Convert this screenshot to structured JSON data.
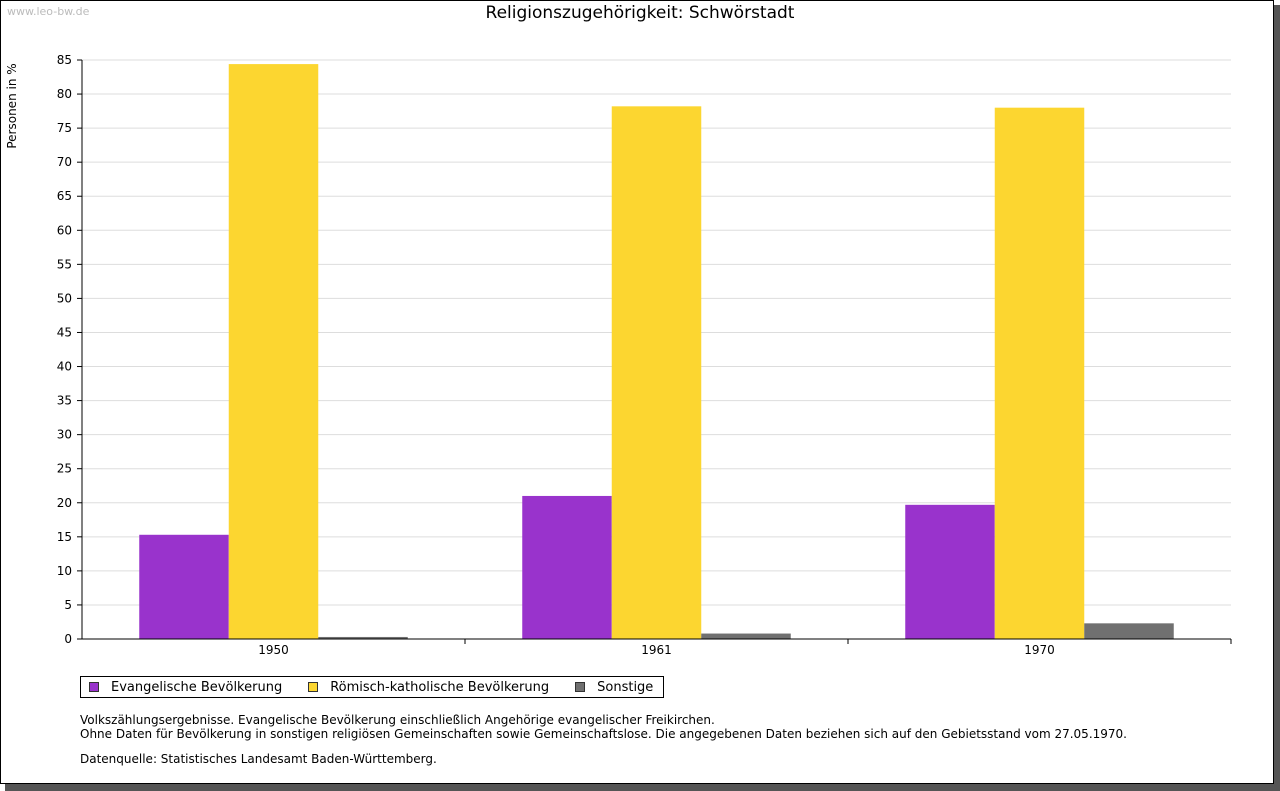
{
  "watermark": "www.leo-bw.de",
  "chart_data": {
    "type": "bar",
    "title": "Religionszugehörigkeit: Schwörstadt",
    "xlabel": "",
    "ylabel": "Personen in %",
    "categories": [
      "1950",
      "1961",
      "1970"
    ],
    "series": [
      {
        "name": "Evangelische Bevölkerung",
        "color": "#9933cc",
        "values": [
          15.3,
          21.0,
          19.7
        ]
      },
      {
        "name": "Römisch-katholische Bevölkerung",
        "color": "#fcd630",
        "values": [
          84.4,
          78.2,
          78.0
        ]
      },
      {
        "name": "Sonstige",
        "color": "#707070",
        "values": [
          0.3,
          0.8,
          2.3
        ]
      }
    ],
    "ylim": [
      0,
      85
    ],
    "yticks": [
      0,
      5,
      10,
      15,
      20,
      25,
      30,
      35,
      40,
      45,
      50,
      55,
      60,
      65,
      70,
      75,
      80,
      85
    ],
    "grid": true,
    "legend_position": "bottom-left"
  },
  "notes": {
    "line1": "Volkszählungsergebnisse. Evangelische Bevölkerung einschließlich Angehörige evangelischer Freikirchen.",
    "line2": "Ohne Daten für Bevölkerung in sonstigen religiösen Gemeinschaften sowie Gemeinschaftslose. Die angegebenen Daten beziehen sich auf den Gebietsstand vom 27.05.1970.",
    "source": "Datenquelle: Statistisches Landesamt Baden-Württemberg."
  }
}
